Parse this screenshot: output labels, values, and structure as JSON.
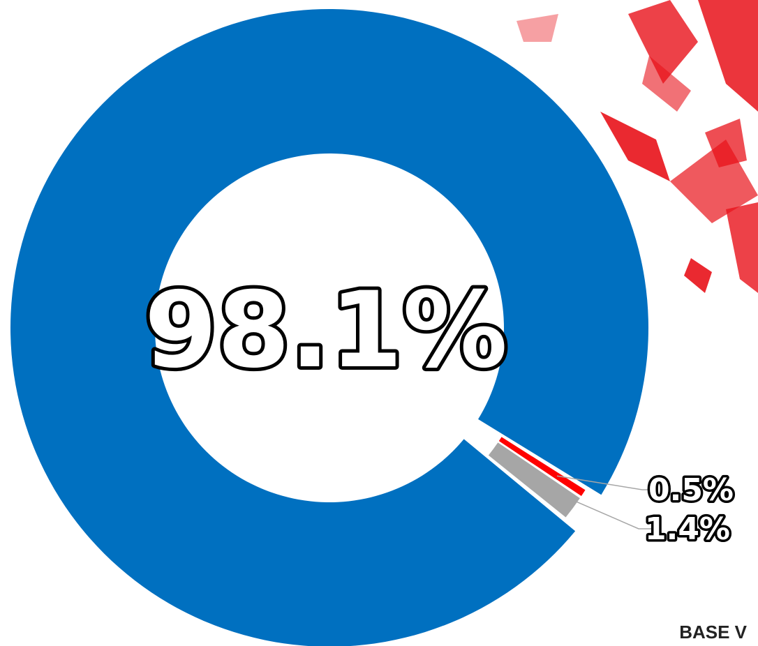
{
  "chart_data": {
    "type": "pie",
    "donut": true,
    "values": [
      98.1,
      0.5,
      1.4
    ],
    "value_labels": [
      "98.1%",
      "0.5%",
      "1.4%"
    ],
    "colors": [
      "#0070c0",
      "#ff0000",
      "#a6a6a6"
    ],
    "note": "BASE V"
  }
}
